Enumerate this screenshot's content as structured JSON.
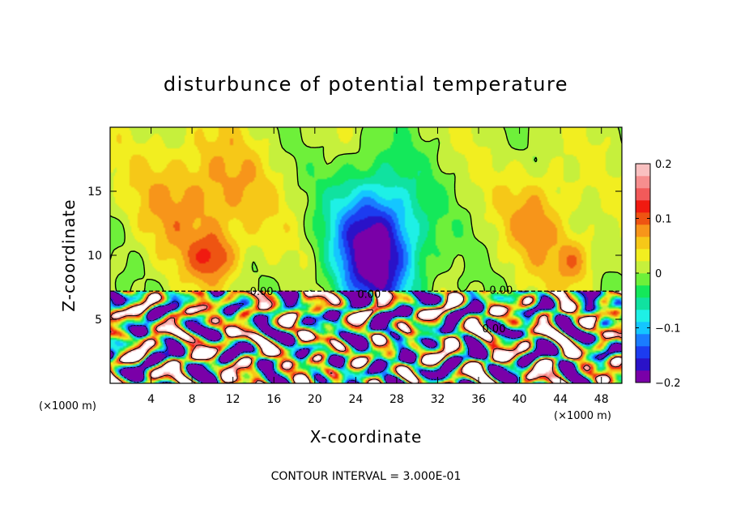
{
  "chart_data": {
    "type": "heatmap",
    "title": "disturbunce of potential temperature",
    "xlabel": "X-coordinate",
    "ylabel": "Z-coordinate",
    "x_unit": "(×1000 m)",
    "y_unit": "(×1000 m)",
    "xlim": [
      0,
      50
    ],
    "ylim": [
      0,
      20
    ],
    "x_ticks": [
      4,
      8,
      12,
      16,
      20,
      24,
      28,
      32,
      36,
      40,
      44,
      48
    ],
    "x_tick_labels": [
      "4",
      "8",
      "12",
      "16",
      "20",
      "24",
      "28",
      "32",
      "36",
      "40",
      "44",
      "48"
    ],
    "y_ticks": [
      5,
      10,
      15
    ],
    "y_tick_labels": [
      "5",
      "10",
      "15"
    ],
    "colorbar": {
      "min": -0.2,
      "max": 0.2,
      "tick_values": [
        0.2,
        0.1,
        0,
        -0.1,
        -0.2
      ],
      "tick_labels": [
        "0.2",
        "0.1",
        "0",
        "−0.1",
        "−0.2"
      ],
      "colors": [
        "#7a00a8",
        "#2a12c8",
        "#1c3cf0",
        "#1a7cff",
        "#14c6ff",
        "#1ef0e6",
        "#10e2a0",
        "#14e85a",
        "#6ef03a",
        "#c6f03c",
        "#f2ee20",
        "#f6c818",
        "#f7951a",
        "#ee5412",
        "#f01a10",
        "#f25a5a",
        "#f68e8e",
        "#f9c0c0"
      ]
    },
    "contour_labels": [
      {
        "text": "0.00",
        "x": 14.8,
        "z": 7.2
      },
      {
        "text": "0.00",
        "x": 25.3,
        "z": 7.0
      },
      {
        "text": "0.00",
        "x": 38.2,
        "z": 7.3
      },
      {
        "text": "0.00",
        "x": 37.5,
        "z": 4.3
      }
    ],
    "field_features": [
      {
        "kind": "cold",
        "x": 26.0,
        "z": 10.5,
        "dx": 4.3,
        "dz": 5.6,
        "amplitude": -0.22
      },
      {
        "kind": "warm",
        "x": 9.0,
        "z": 14.5,
        "dx": 6.0,
        "dz": 5.0,
        "amplitude": 0.075
      },
      {
        "kind": "warm",
        "x": 10.2,
        "z": 9.8,
        "dx": 2.3,
        "dz": 1.9,
        "amplitude": 0.08
      },
      {
        "kind": "warm",
        "x": 42.0,
        "z": 13.0,
        "dx": 3.5,
        "dz": 4.0,
        "amplitude": 0.065
      },
      {
        "kind": "warm",
        "x": 45.5,
        "z": 9.5,
        "dx": 2.0,
        "dz": 2.0,
        "amplitude": 0.07
      }
    ],
    "note": "CONTOUR INTERVAL = 3.000E-01"
  }
}
